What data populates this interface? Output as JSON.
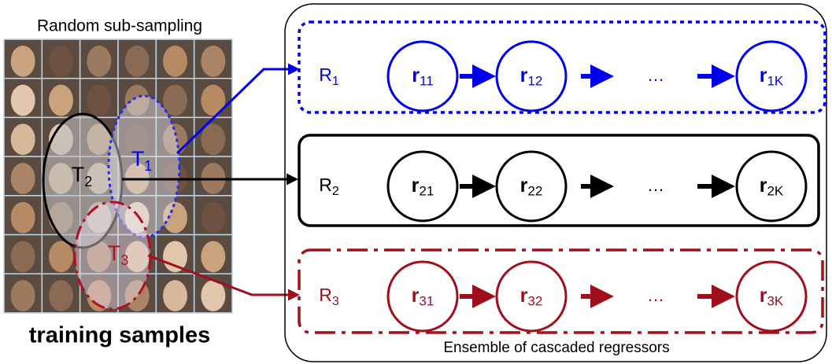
{
  "header": {
    "subsampling": "Random sub-sampling",
    "training": "training samples"
  },
  "subsets": [
    {
      "main": "T",
      "sub": "1"
    },
    {
      "main": "T",
      "sub": "2"
    },
    {
      "main": "T",
      "sub": "3"
    }
  ],
  "ensemble": {
    "caption": "Ensemble of cascaded regressors",
    "rows": [
      {
        "label": {
          "main": "R",
          "sub": "1"
        },
        "nodes": [
          {
            "main": "r",
            "sub": "11"
          },
          {
            "main": "r",
            "sub": "12"
          },
          {
            "main": "r",
            "sub": "1K"
          }
        ],
        "ellipsis": "…"
      },
      {
        "label": {
          "main": "R",
          "sub": "2"
        },
        "nodes": [
          {
            "main": "r",
            "sub": "21"
          },
          {
            "main": "r",
            "sub": "22"
          },
          {
            "main": "r",
            "sub": "2K"
          }
        ],
        "ellipsis": "…"
      },
      {
        "label": {
          "main": "R",
          "sub": "3"
        },
        "nodes": [
          {
            "main": "r",
            "sub": "31"
          },
          {
            "main": "r",
            "sub": "32"
          },
          {
            "main": "r",
            "sub": "3K"
          }
        ],
        "ellipsis": "…"
      }
    ]
  }
}
